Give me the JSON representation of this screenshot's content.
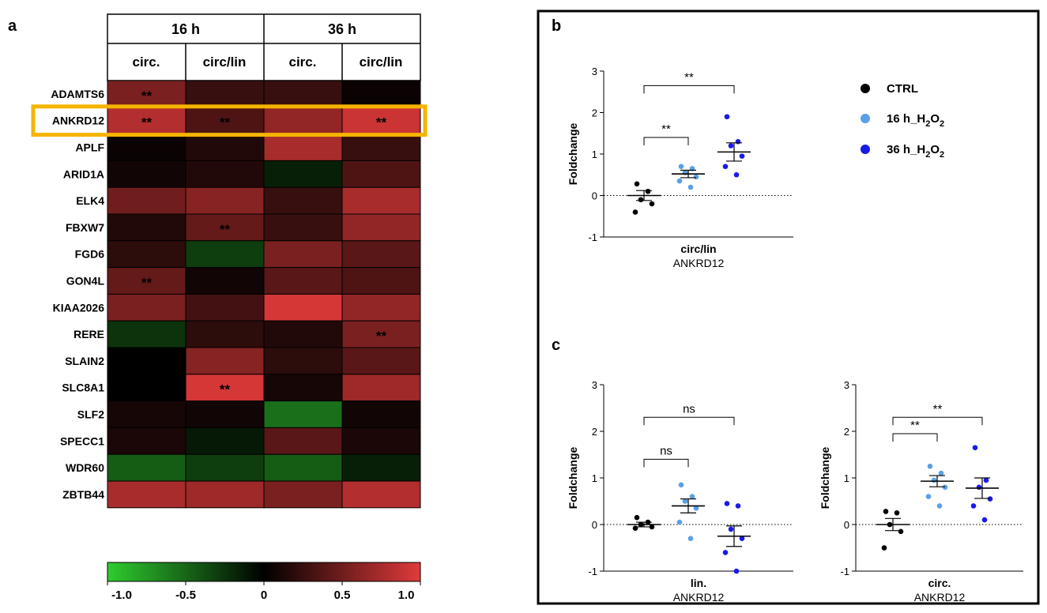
{
  "chart_data": [
    {
      "panel": "a",
      "type": "heatmap",
      "title": "",
      "time_headers": [
        "16 h",
        "36 h"
      ],
      "sub_headers": [
        "circ.",
        "circ/lin",
        "circ.",
        "circ/lin"
      ],
      "genes": [
        "ADAMTS6",
        "ANKRD12",
        "APLF",
        "ARID1A",
        "ELK4",
        "FBXW7",
        "FGD6",
        "GON4L",
        "KIAA2026",
        "RERE",
        "SLAIN2",
        "SLC8A1",
        "SLF2",
        "SPECC1",
        "WDR60",
        "ZBTB44"
      ],
      "values": [
        [
          0.55,
          0.25,
          0.25,
          0.05
        ],
        [
          0.8,
          0.35,
          0.65,
          0.9
        ],
        [
          0.05,
          0.15,
          0.75,
          0.25
        ],
        [
          0.08,
          0.15,
          -0.15,
          0.35
        ],
        [
          0.5,
          0.6,
          0.25,
          0.75
        ],
        [
          0.15,
          0.45,
          0.25,
          0.65
        ],
        [
          0.2,
          -0.3,
          0.55,
          0.4
        ],
        [
          0.45,
          0.08,
          0.4,
          0.35
        ],
        [
          0.55,
          0.3,
          0.95,
          0.65
        ],
        [
          -0.25,
          0.2,
          0.15,
          0.55
        ],
        [
          0.0,
          0.6,
          0.2,
          0.4
        ],
        [
          0.0,
          0.95,
          0.1,
          0.7
        ],
        [
          0.1,
          0.08,
          -0.55,
          0.08
        ],
        [
          0.12,
          -0.12,
          0.4,
          0.12
        ],
        [
          -0.45,
          -0.3,
          -0.45,
          -0.15
        ],
        [
          0.75,
          0.7,
          0.55,
          0.8
        ]
      ],
      "significance_marker": "**",
      "significant": [
        [
          0,
          0
        ],
        [
          1,
          0
        ],
        [
          1,
          1
        ],
        [
          1,
          3
        ],
        [
          5,
          1
        ],
        [
          7,
          0
        ],
        [
          9,
          3
        ],
        [
          11,
          1
        ]
      ],
      "highlighted_gene": "ANKRD12",
      "colorbar": {
        "min": -1.0,
        "max": 1.0,
        "ticks": [
          "-1.0",
          "-0.5",
          "0",
          "0.5",
          "1.0"
        ],
        "low_color": "#2fcc2f",
        "mid_color": "#000000",
        "high_color": "#e03a3a"
      },
      "highlight_color": "#f5b400",
      "marker_color": "#f5b400"
    },
    {
      "panel": "b",
      "type": "scatter",
      "ylabel": "Foldchange",
      "xlabel_lines": [
        "circ/lin",
        "ANKRD12"
      ],
      "ylim": [
        -1,
        3
      ],
      "yticks": [
        "-1",
        "0",
        "1",
        "2",
        "3"
      ],
      "series": [
        {
          "name": "CTRL",
          "values": [
            0.28,
            0.1,
            -0.1,
            -0.2,
            -0.4
          ],
          "mean": 0.0,
          "sem": 0.12
        },
        {
          "name": "16 h_H2O2",
          "values": [
            0.7,
            0.65,
            0.55,
            0.45,
            0.35,
            0.2
          ],
          "mean": 0.52,
          "sem": 0.09
        },
        {
          "name": "36 h_H2O2",
          "values": [
            1.9,
            1.3,
            1.2,
            0.95,
            0.7,
            0.5
          ],
          "mean": 1.05,
          "sem": 0.22
        }
      ],
      "brackets": [
        {
          "from": 0,
          "to": 2,
          "label": "**",
          "level": 2.65
        },
        {
          "from": 0,
          "to": 1,
          "label": "**",
          "level": 1.4
        }
      ]
    },
    {
      "panel": "c",
      "type": "scatter",
      "ylabel": "Foldchange",
      "xlabel_lines": [
        "lin.",
        "ANKRD12"
      ],
      "ylim": [
        -1,
        3
      ],
      "yticks": [
        "-1",
        "0",
        "1",
        "2",
        "3"
      ],
      "series": [
        {
          "name": "CTRL",
          "values": [
            0.15,
            0.05,
            0.0,
            -0.05,
            -0.08
          ],
          "mean": 0.0,
          "sem": 0.05
        },
        {
          "name": "16 h_H2O2",
          "values": [
            0.85,
            0.6,
            0.5,
            0.35,
            0.05,
            -0.3
          ],
          "mean": 0.4,
          "sem": 0.15
        },
        {
          "name": "36 h_H2O2",
          "values": [
            0.45,
            0.4,
            -0.1,
            -0.3,
            -0.6,
            -1.0
          ],
          "mean": -0.25,
          "sem": 0.22
        }
      ],
      "brackets": [
        {
          "from": 0,
          "to": 2,
          "label": "ns",
          "level": 2.3
        },
        {
          "from": 0,
          "to": 1,
          "label": "ns",
          "level": 1.4
        }
      ]
    },
    {
      "panel": "c",
      "type": "scatter",
      "ylabel": "Foldchange",
      "xlabel_lines": [
        "circ.",
        "ANKRD12"
      ],
      "ylim": [
        -1,
        3
      ],
      "yticks": [
        "-1",
        "0",
        "1",
        "2",
        "3"
      ],
      "series": [
        {
          "name": "CTRL",
          "values": [
            0.28,
            0.25,
            0.0,
            -0.15,
            -0.5
          ],
          "mean": 0.0,
          "sem": 0.13
        },
        {
          "name": "16 h_H2O2",
          "values": [
            1.25,
            1.1,
            0.95,
            0.8,
            0.6,
            0.4
          ],
          "mean": 0.93,
          "sem": 0.12
        },
        {
          "name": "36 h_H2O2",
          "values": [
            1.65,
            0.95,
            0.8,
            0.55,
            0.4,
            0.1
          ],
          "mean": 0.78,
          "sem": 0.22
        }
      ],
      "brackets": [
        {
          "from": 0,
          "to": 2,
          "label": "**",
          "level": 2.3
        },
        {
          "from": 0,
          "to": 1,
          "label": "**",
          "level": 1.95
        }
      ]
    }
  ],
  "panel_labels": {
    "a": "a",
    "b": "b",
    "c": "c"
  },
  "legend": {
    "entries": [
      {
        "label": "CTRL",
        "color": "#000000"
      },
      {
        "label": "16 h_H",
        "sub1": "2",
        "mid": "O",
        "sub2": "2",
        "color": "#5aa0e6"
      },
      {
        "label": "36 h_H",
        "sub1": "2",
        "mid": "O",
        "sub2": "2",
        "color": "#1a1ae6"
      }
    ]
  }
}
